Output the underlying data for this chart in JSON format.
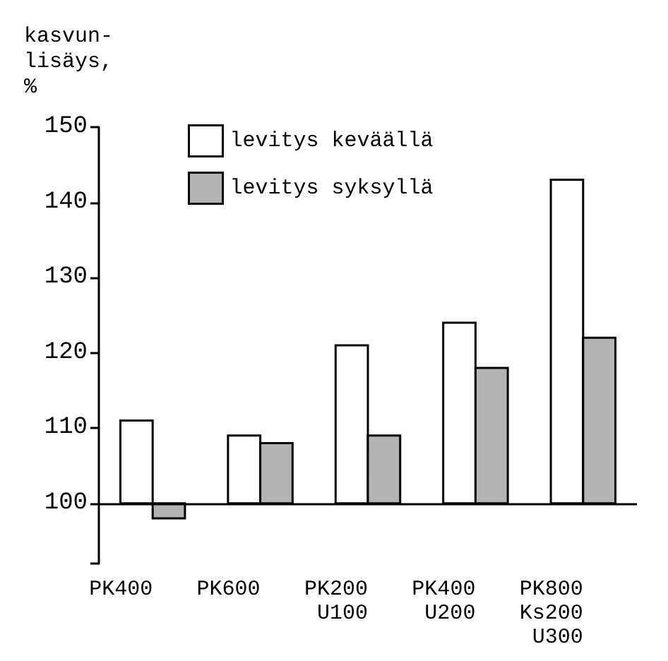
{
  "chart_data": {
    "type": "bar",
    "ylabel": "kasvun-\nlisäys,\n%",
    "categories": [
      "PK400",
      "PK600",
      "PK200\nU100",
      "PK400\nU200",
      "PK800\nKs200\nU300"
    ],
    "series": [
      {
        "name": "levitys keväällä",
        "color": "#ffffff",
        "base": [
          100,
          100,
          100,
          100,
          100
        ],
        "values": [
          11,
          9,
          21,
          24,
          43
        ]
      },
      {
        "name": "levitys syksyllä",
        "color": "#b4b4b4",
        "base": [
          100,
          100,
          100,
          100,
          100
        ],
        "values": [
          -2,
          8,
          9,
          18,
          22
        ]
      }
    ],
    "ylim": [
      92,
      150
    ],
    "yticks": [
      {
        "value": 92,
        "label": null
      },
      100,
      110,
      120,
      130,
      140,
      150
    ],
    "ref_lines": [
      {
        "axis": "y",
        "value": 100,
        "color": "#000000"
      }
    ],
    "grid": false,
    "legend": "top"
  }
}
